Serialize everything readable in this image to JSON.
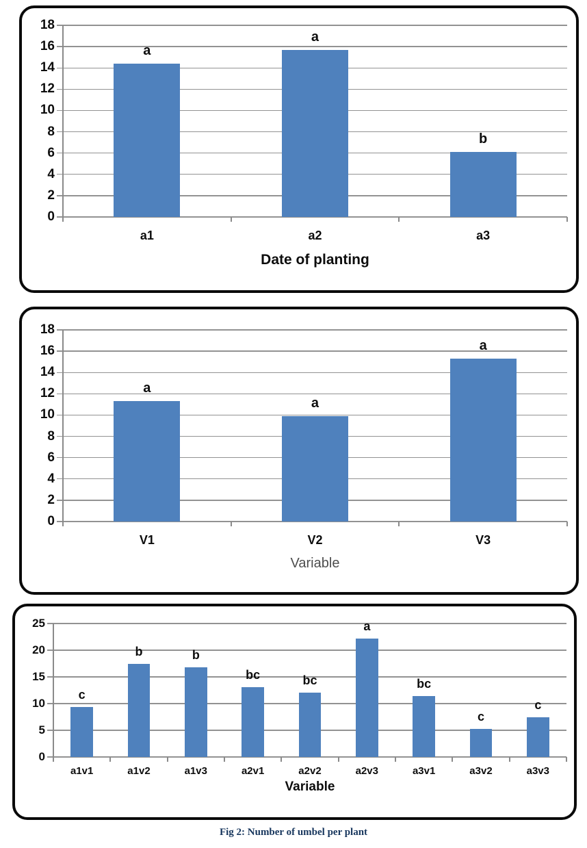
{
  "caption": "Fig 2: Number of umbel per plant",
  "colors": {
    "bar": "#4F81BD",
    "gridline": "#929292",
    "axis_line": "#8A8A8A",
    "panel_border": "#0A0A0A",
    "xlabel_gray": "#4D4D4D",
    "caption_text": "#17365D"
  },
  "chart_data": [
    {
      "type": "bar",
      "categories": [
        "a1",
        "a2",
        "a3"
      ],
      "values": [
        14.4,
        15.7,
        6.1
      ],
      "bar_labels": [
        "a",
        "a",
        "b"
      ],
      "title": "",
      "xlabel": "Date of planting",
      "ylabel": "",
      "ylim": [
        0,
        18
      ],
      "ytick_step": 2,
      "yticks": [
        0,
        2,
        4,
        6,
        8,
        10,
        12,
        14,
        16,
        18
      ],
      "grid": true,
      "legend": false,
      "bar_color": "#4F81BD"
    },
    {
      "type": "bar",
      "categories": [
        "V1",
        "V2",
        "V3"
      ],
      "values": [
        11.3,
        9.9,
        15.3
      ],
      "bar_labels": [
        "a",
        "a",
        "a"
      ],
      "title": "",
      "xlabel": "Variable",
      "ylabel": "",
      "ylim": [
        0,
        18
      ],
      "ytick_step": 2,
      "yticks": [
        0,
        2,
        4,
        6,
        8,
        10,
        12,
        14,
        16,
        18
      ],
      "grid": true,
      "legend": false,
      "bar_color": "#4F81BD"
    },
    {
      "type": "bar",
      "categories": [
        "a1v1",
        "a1v2",
        "a1v3",
        "a2v1",
        "a2v2",
        "a2v3",
        "a3v1",
        "a3v2",
        "a3v3"
      ],
      "values": [
        9.3,
        17.5,
        16.8,
        13.1,
        12.1,
        22.2,
        11.4,
        5.3,
        7.4
      ],
      "bar_labels": [
        "c",
        "b",
        "b",
        "bc",
        "bc",
        "a",
        "bc",
        "c",
        "c"
      ],
      "title": "",
      "xlabel": "Variable",
      "ylabel": "",
      "ylim": [
        0,
        25
      ],
      "ytick_step": 5,
      "yticks": [
        0,
        5,
        10,
        15,
        20,
        25
      ],
      "grid": true,
      "legend": false,
      "bar_color": "#4F81BD"
    }
  ]
}
